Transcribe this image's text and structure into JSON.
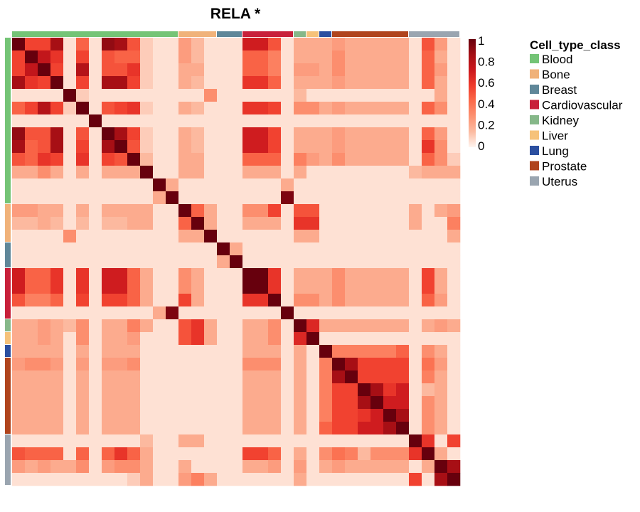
{
  "chart_data": {
    "type": "heatmap",
    "title": "RELA *",
    "n": 35,
    "scale": {
      "min": 0,
      "max": 1,
      "ticks": [
        "1",
        "0.8",
        "0.6",
        "0.4",
        "0.2",
        "0"
      ],
      "colors": [
        "#fff5f0",
        "#fcbba1",
        "#fc9272",
        "#fb6a4a",
        "#ef3b2c",
        "#cb181d",
        "#a50f15",
        "#67000d"
      ]
    },
    "legend": {
      "title": "Cell_type_class",
      "position": "right",
      "items": [
        {
          "label": "Blood",
          "color": "#74c476"
        },
        {
          "label": "Bone",
          "color": "#f0b27a"
        },
        {
          "label": "Breast",
          "color": "#5f8799"
        },
        {
          "label": "Cardiovascular",
          "color": "#c8203a"
        },
        {
          "label": "Kidney",
          "color": "#86b889"
        },
        {
          "label": "Liver",
          "color": "#f6c27a"
        },
        {
          "label": "Lung",
          "color": "#2b4fa0"
        },
        {
          "label": "Prostate",
          "color": "#b0441d"
        },
        {
          "label": "Uterus",
          "color": "#9aa5b0"
        }
      ]
    },
    "annotation_groups": [
      {
        "class": "Blood",
        "start": 0,
        "count": 13
      },
      {
        "class": "Bone",
        "start": 13,
        "count": 3
      },
      {
        "class": "Breast",
        "start": 16,
        "count": 2
      },
      {
        "class": "Cardiovascular",
        "start": 18,
        "count": 4
      },
      {
        "class": "Kidney",
        "start": 22,
        "count": 1
      },
      {
        "class": "Liver",
        "start": 23,
        "count": 1
      },
      {
        "class": "Lung",
        "start": 24,
        "count": 1
      },
      {
        "class": "Prostate",
        "start": 25,
        "count": 6
      },
      {
        "class": "Uterus",
        "start": 31,
        "count": 4
      }
    ],
    "matrix": [
      [
        1,
        0.55,
        0.55,
        0.85,
        0.05,
        0.45,
        0.05,
        0.9,
        0.85,
        0.5,
        0.1,
        0.05,
        0.05,
        0.25,
        0.15,
        0.05,
        0.05,
        0.05,
        0.7,
        0.7,
        0.5,
        0.05,
        0.2,
        0.2,
        0.2,
        0.25,
        0.2,
        0.2,
        0.2,
        0.2,
        0.2,
        0.05,
        0.5,
        0.25,
        0.05
      ],
      [
        0.55,
        1,
        0.75,
        0.6,
        0.05,
        0.55,
        0.05,
        0.5,
        0.45,
        0.45,
        0.1,
        0.05,
        0.05,
        0.25,
        0.15,
        0.05,
        0.05,
        0.05,
        0.45,
        0.45,
        0.35,
        0.05,
        0.2,
        0.2,
        0.2,
        0.3,
        0.2,
        0.2,
        0.2,
        0.2,
        0.2,
        0.05,
        0.45,
        0.2,
        0.05
      ],
      [
        0.55,
        0.75,
        1,
        0.55,
        0.05,
        0.8,
        0.05,
        0.5,
        0.5,
        0.6,
        0.1,
        0.05,
        0.05,
        0.2,
        0.2,
        0.05,
        0.05,
        0.05,
        0.45,
        0.45,
        0.35,
        0.05,
        0.25,
        0.25,
        0.2,
        0.3,
        0.2,
        0.2,
        0.2,
        0.2,
        0.2,
        0.05,
        0.45,
        0.25,
        0.05
      ],
      [
        0.85,
        0.6,
        0.55,
        1,
        0.05,
        0.55,
        0.05,
        0.85,
        0.85,
        0.55,
        0.1,
        0.05,
        0.05,
        0.2,
        0.15,
        0.05,
        0.05,
        0.05,
        0.6,
        0.6,
        0.45,
        0.05,
        0.2,
        0.2,
        0.2,
        0.25,
        0.2,
        0.2,
        0.2,
        0.2,
        0.2,
        0.05,
        0.45,
        0.2,
        0.05
      ],
      [
        0.05,
        0.05,
        0.05,
        0.05,
        1,
        0.1,
        0.05,
        0.05,
        0.05,
        0.05,
        0.05,
        0.05,
        0.05,
        0.05,
        0.05,
        0.3,
        0.05,
        0.05,
        0.05,
        0.05,
        0.05,
        0.05,
        0.15,
        0.05,
        0.05,
        0.05,
        0.05,
        0.05,
        0.05,
        0.05,
        0.05,
        0.05,
        0.05,
        0.2,
        0.05
      ],
      [
        0.45,
        0.55,
        0.8,
        0.55,
        0.1,
        1,
        0.05,
        0.5,
        0.55,
        0.6,
        0.1,
        0.05,
        0.05,
        0.2,
        0.15,
        0.05,
        0.05,
        0.05,
        0.6,
        0.6,
        0.55,
        0.05,
        0.3,
        0.3,
        0.2,
        0.25,
        0.2,
        0.2,
        0.2,
        0.2,
        0.2,
        0.05,
        0.45,
        0.3,
        0.05
      ],
      [
        0.05,
        0.05,
        0.05,
        0.05,
        0.05,
        0.05,
        1,
        0.05,
        0.05,
        0.05,
        0.05,
        0.05,
        0.05,
        0.05,
        0.05,
        0.05,
        0.05,
        0.05,
        0.05,
        0.05,
        0.05,
        0.05,
        0.05,
        0.05,
        0.05,
        0.05,
        0.05,
        0.05,
        0.05,
        0.05,
        0.05,
        0.05,
        0.05,
        0.05,
        0.05
      ],
      [
        0.9,
        0.5,
        0.5,
        0.85,
        0.05,
        0.5,
        0.05,
        1,
        0.85,
        0.55,
        0.1,
        0.05,
        0.05,
        0.2,
        0.15,
        0.05,
        0.05,
        0.05,
        0.7,
        0.7,
        0.55,
        0.05,
        0.2,
        0.2,
        0.2,
        0.25,
        0.2,
        0.2,
        0.2,
        0.2,
        0.2,
        0.05,
        0.45,
        0.25,
        0.05
      ],
      [
        0.85,
        0.45,
        0.5,
        0.85,
        0.05,
        0.55,
        0.05,
        0.85,
        1,
        0.5,
        0.1,
        0.05,
        0.05,
        0.2,
        0.15,
        0.05,
        0.05,
        0.05,
        0.7,
        0.7,
        0.55,
        0.05,
        0.2,
        0.2,
        0.2,
        0.25,
        0.2,
        0.2,
        0.2,
        0.2,
        0.2,
        0.05,
        0.6,
        0.3,
        0.05
      ],
      [
        0.5,
        0.45,
        0.6,
        0.55,
        0.05,
        0.6,
        0.05,
        0.55,
        0.5,
        1,
        0.15,
        0.05,
        0.05,
        0.2,
        0.2,
        0.05,
        0.05,
        0.05,
        0.45,
        0.45,
        0.45,
        0.05,
        0.35,
        0.25,
        0.2,
        0.3,
        0.2,
        0.2,
        0.2,
        0.2,
        0.2,
        0.05,
        0.45,
        0.3,
        0.1
      ],
      [
        0.2,
        0.2,
        0.3,
        0.2,
        0.05,
        0.2,
        0.05,
        0.2,
        0.2,
        0.2,
        1,
        0.05,
        0.05,
        0.2,
        0.2,
        0.05,
        0.05,
        0.05,
        0.2,
        0.2,
        0.2,
        0.05,
        0.2,
        0.05,
        0.05,
        0.05,
        0.05,
        0.05,
        0.05,
        0.05,
        0.05,
        0.15,
        0.2,
        0.2,
        0.2
      ],
      [
        0.05,
        0.05,
        0.05,
        0.05,
        0.05,
        0.05,
        0.05,
        0.05,
        0.05,
        0.05,
        0.05,
        1,
        0.2,
        0.05,
        0.05,
        0.05,
        0.05,
        0.05,
        0.05,
        0.05,
        0.05,
        0.2,
        0.05,
        0.05,
        0.05,
        0.05,
        0.05,
        0.05,
        0.05,
        0.05,
        0.05,
        0.05,
        0.05,
        0.05,
        0.05
      ],
      [
        0.05,
        0.05,
        0.05,
        0.05,
        0.05,
        0.05,
        0.05,
        0.05,
        0.05,
        0.05,
        0.05,
        0.2,
        1,
        0.05,
        0.05,
        0.05,
        0.05,
        0.05,
        0.05,
        0.05,
        0.05,
        0.95,
        0.05,
        0.05,
        0.05,
        0.05,
        0.05,
        0.05,
        0.05,
        0.05,
        0.05,
        0.05,
        0.05,
        0.05,
        0.05
      ],
      [
        0.25,
        0.25,
        0.2,
        0.2,
        0.05,
        0.2,
        0.05,
        0.2,
        0.2,
        0.2,
        0.2,
        0.05,
        0.05,
        1,
        0.45,
        0.2,
        0.05,
        0.05,
        0.3,
        0.3,
        0.55,
        0.05,
        0.5,
        0.5,
        0.05,
        0.05,
        0.05,
        0.05,
        0.05,
        0.05,
        0.05,
        0.2,
        0.05,
        0.2,
        0.25
      ],
      [
        0.15,
        0.15,
        0.2,
        0.15,
        0.05,
        0.15,
        0.05,
        0.15,
        0.15,
        0.2,
        0.2,
        0.05,
        0.05,
        0.45,
        1,
        0.2,
        0.05,
        0.05,
        0.2,
        0.2,
        0.2,
        0.05,
        0.6,
        0.6,
        0.05,
        0.05,
        0.05,
        0.05,
        0.05,
        0.05,
        0.05,
        0.2,
        0.05,
        0.05,
        0.35
      ],
      [
        0.05,
        0.05,
        0.05,
        0.05,
        0.3,
        0.05,
        0.05,
        0.05,
        0.05,
        0.05,
        0.05,
        0.05,
        0.05,
        0.2,
        0.2,
        1,
        0.05,
        0.05,
        0.05,
        0.05,
        0.05,
        0.05,
        0.2,
        0.2,
        0.05,
        0.05,
        0.05,
        0.05,
        0.05,
        0.05,
        0.05,
        0.05,
        0.05,
        0.05,
        0.2
      ],
      [
        0.05,
        0.05,
        0.05,
        0.05,
        0.05,
        0.05,
        0.05,
        0.05,
        0.05,
        0.05,
        0.05,
        0.05,
        0.05,
        0.05,
        0.05,
        0.05,
        1,
        0.2,
        0.05,
        0.05,
        0.05,
        0.05,
        0.05,
        0.05,
        0.05,
        0.05,
        0.05,
        0.05,
        0.05,
        0.05,
        0.05,
        0.05,
        0.05,
        0.05,
        0.05
      ],
      [
        0.05,
        0.05,
        0.05,
        0.05,
        0.05,
        0.05,
        0.05,
        0.05,
        0.05,
        0.05,
        0.05,
        0.05,
        0.05,
        0.05,
        0.05,
        0.05,
        0.2,
        1,
        0.05,
        0.05,
        0.05,
        0.05,
        0.05,
        0.05,
        0.05,
        0.05,
        0.05,
        0.05,
        0.05,
        0.05,
        0.05,
        0.05,
        0.05,
        0.05,
        0.05
      ],
      [
        0.7,
        0.45,
        0.45,
        0.6,
        0.05,
        0.6,
        0.05,
        0.7,
        0.7,
        0.45,
        0.2,
        0.05,
        0.05,
        0.3,
        0.2,
        0.05,
        0.05,
        0.05,
        1,
        1,
        0.6,
        0.05,
        0.2,
        0.2,
        0.2,
        0.3,
        0.2,
        0.2,
        0.2,
        0.2,
        0.2,
        0.05,
        0.55,
        0.2,
        0.05
      ],
      [
        0.7,
        0.45,
        0.45,
        0.6,
        0.05,
        0.6,
        0.05,
        0.7,
        0.7,
        0.45,
        0.2,
        0.05,
        0.05,
        0.3,
        0.2,
        0.05,
        0.05,
        0.05,
        1,
        1,
        0.6,
        0.05,
        0.2,
        0.2,
        0.2,
        0.3,
        0.2,
        0.2,
        0.2,
        0.2,
        0.2,
        0.05,
        0.55,
        0.2,
        0.05
      ],
      [
        0.5,
        0.35,
        0.35,
        0.45,
        0.05,
        0.55,
        0.05,
        0.55,
        0.55,
        0.45,
        0.2,
        0.05,
        0.05,
        0.55,
        0.2,
        0.05,
        0.05,
        0.05,
        0.6,
        0.6,
        1,
        0.05,
        0.3,
        0.3,
        0.2,
        0.3,
        0.2,
        0.2,
        0.2,
        0.2,
        0.2,
        0.05,
        0.45,
        0.25,
        0.05
      ],
      [
        0.05,
        0.05,
        0.05,
        0.05,
        0.05,
        0.05,
        0.05,
        0.05,
        0.05,
        0.05,
        0.05,
        0.2,
        0.95,
        0.05,
        0.05,
        0.05,
        0.05,
        0.05,
        0.05,
        0.05,
        0.05,
        1,
        0.05,
        0.05,
        0.05,
        0.05,
        0.05,
        0.05,
        0.05,
        0.05,
        0.05,
        0.05,
        0.05,
        0.05,
        0.05
      ],
      [
        0.2,
        0.2,
        0.25,
        0.2,
        0.15,
        0.3,
        0.05,
        0.2,
        0.2,
        0.35,
        0.2,
        0.05,
        0.05,
        0.5,
        0.6,
        0.2,
        0.05,
        0.05,
        0.2,
        0.2,
        0.3,
        0.05,
        1,
        0.65,
        0.2,
        0.2,
        0.2,
        0.2,
        0.2,
        0.2,
        0.2,
        0.05,
        0.2,
        0.25,
        0.2
      ],
      [
        0.2,
        0.2,
        0.25,
        0.2,
        0.05,
        0.3,
        0.05,
        0.2,
        0.2,
        0.25,
        0.05,
        0.05,
        0.05,
        0.5,
        0.6,
        0.2,
        0.05,
        0.05,
        0.2,
        0.2,
        0.3,
        0.05,
        0.65,
        1,
        0.05,
        0.05,
        0.05,
        0.05,
        0.05,
        0.05,
        0.05,
        0.05,
        0.05,
        0.05,
        0.05
      ],
      [
        0.2,
        0.2,
        0.2,
        0.2,
        0.05,
        0.2,
        0.05,
        0.2,
        0.2,
        0.2,
        0.05,
        0.05,
        0.05,
        0.05,
        0.05,
        0.05,
        0.05,
        0.05,
        0.2,
        0.2,
        0.2,
        0.05,
        0.2,
        0.05,
        1,
        0.35,
        0.35,
        0.35,
        0.35,
        0.35,
        0.45,
        0.05,
        0.3,
        0.2,
        0.05
      ],
      [
        0.25,
        0.3,
        0.3,
        0.25,
        0.05,
        0.25,
        0.05,
        0.25,
        0.25,
        0.3,
        0.05,
        0.05,
        0.05,
        0.05,
        0.05,
        0.05,
        0.05,
        0.05,
        0.3,
        0.3,
        0.3,
        0.05,
        0.2,
        0.05,
        0.35,
        1,
        0.85,
        0.55,
        0.55,
        0.55,
        0.55,
        0.05,
        0.4,
        0.25,
        0.05
      ],
      [
        0.2,
        0.2,
        0.2,
        0.2,
        0.05,
        0.2,
        0.05,
        0.2,
        0.2,
        0.2,
        0.05,
        0.05,
        0.05,
        0.05,
        0.05,
        0.05,
        0.05,
        0.05,
        0.2,
        0.2,
        0.2,
        0.05,
        0.2,
        0.05,
        0.35,
        0.85,
        1,
        0.55,
        0.55,
        0.55,
        0.55,
        0.05,
        0.35,
        0.2,
        0.05
      ],
      [
        0.2,
        0.2,
        0.2,
        0.2,
        0.05,
        0.2,
        0.05,
        0.2,
        0.2,
        0.2,
        0.05,
        0.05,
        0.05,
        0.05,
        0.05,
        0.05,
        0.05,
        0.05,
        0.2,
        0.2,
        0.2,
        0.05,
        0.2,
        0.05,
        0.35,
        0.55,
        0.55,
        1,
        0.85,
        0.6,
        0.7,
        0.05,
        0.15,
        0.2,
        0.05
      ],
      [
        0.2,
        0.2,
        0.2,
        0.2,
        0.05,
        0.2,
        0.05,
        0.2,
        0.2,
        0.2,
        0.05,
        0.05,
        0.05,
        0.05,
        0.05,
        0.05,
        0.05,
        0.05,
        0.2,
        0.2,
        0.2,
        0.05,
        0.2,
        0.05,
        0.35,
        0.55,
        0.55,
        0.85,
        1,
        0.7,
        0.7,
        0.05,
        0.3,
        0.2,
        0.05
      ],
      [
        0.2,
        0.2,
        0.2,
        0.2,
        0.05,
        0.2,
        0.05,
        0.2,
        0.2,
        0.2,
        0.05,
        0.05,
        0.05,
        0.05,
        0.05,
        0.05,
        0.05,
        0.05,
        0.2,
        0.2,
        0.2,
        0.05,
        0.2,
        0.05,
        0.35,
        0.55,
        0.55,
        0.6,
        0.7,
        1,
        0.85,
        0.05,
        0.3,
        0.2,
        0.05
      ],
      [
        0.2,
        0.2,
        0.2,
        0.2,
        0.05,
        0.2,
        0.05,
        0.2,
        0.2,
        0.2,
        0.05,
        0.05,
        0.05,
        0.05,
        0.05,
        0.05,
        0.05,
        0.05,
        0.2,
        0.2,
        0.2,
        0.05,
        0.2,
        0.05,
        0.45,
        0.55,
        0.55,
        0.7,
        0.7,
        0.85,
        1,
        0.05,
        0.3,
        0.2,
        0.05
      ],
      [
        0.05,
        0.05,
        0.05,
        0.05,
        0.05,
        0.05,
        0.05,
        0.05,
        0.05,
        0.05,
        0.15,
        0.05,
        0.05,
        0.2,
        0.2,
        0.05,
        0.05,
        0.05,
        0.05,
        0.05,
        0.05,
        0.05,
        0.05,
        0.05,
        0.05,
        0.05,
        0.05,
        0.05,
        0.05,
        0.05,
        0.05,
        1,
        0.6,
        0.05,
        0.55
      ],
      [
        0.5,
        0.45,
        0.45,
        0.45,
        0.05,
        0.45,
        0.05,
        0.45,
        0.6,
        0.45,
        0.2,
        0.05,
        0.05,
        0.05,
        0.05,
        0.05,
        0.05,
        0.05,
        0.55,
        0.55,
        0.45,
        0.05,
        0.2,
        0.05,
        0.3,
        0.4,
        0.35,
        0.15,
        0.3,
        0.3,
        0.3,
        0.6,
        1,
        0.2,
        0.05
      ],
      [
        0.25,
        0.2,
        0.25,
        0.2,
        0.2,
        0.3,
        0.05,
        0.25,
        0.3,
        0.3,
        0.2,
        0.05,
        0.05,
        0.2,
        0.05,
        0.05,
        0.05,
        0.05,
        0.2,
        0.2,
        0.25,
        0.05,
        0.25,
        0.05,
        0.2,
        0.25,
        0.2,
        0.2,
        0.2,
        0.2,
        0.2,
        0.05,
        0.2,
        1,
        0.85
      ],
      [
        0.05,
        0.05,
        0.05,
        0.05,
        0.05,
        0.05,
        0.05,
        0.05,
        0.05,
        0.1,
        0.2,
        0.05,
        0.05,
        0.25,
        0.35,
        0.2,
        0.05,
        0.05,
        0.05,
        0.05,
        0.05,
        0.05,
        0.2,
        0.05,
        0.05,
        0.05,
        0.05,
        0.05,
        0.05,
        0.05,
        0.05,
        0.55,
        0.05,
        0.85,
        1
      ]
    ]
  }
}
